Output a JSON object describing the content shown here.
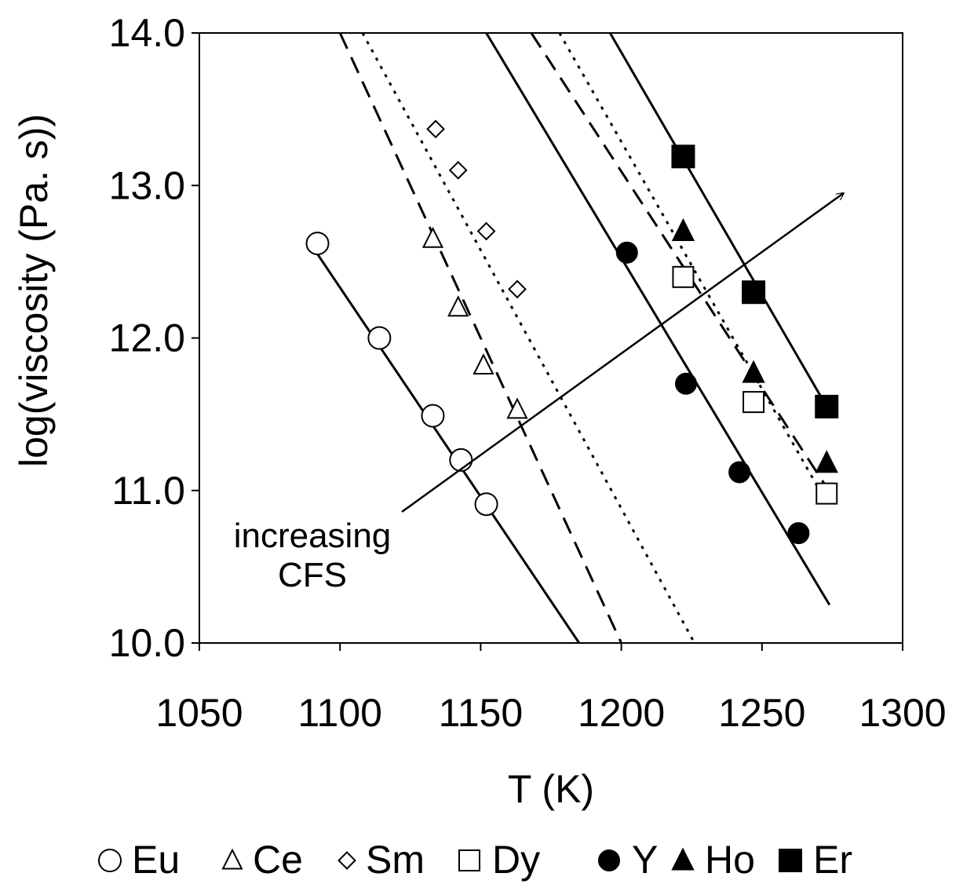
{
  "chart_data": {
    "type": "scatter",
    "xlabel": "T (K)",
    "ylabel": "log(viscosity (Pa. s))",
    "xlim": [
      1050,
      1300
    ],
    "ylim": [
      10.0,
      14.0
    ],
    "x_ticks": [
      "1050",
      "1100",
      "1150",
      "1200",
      "1250",
      "1300"
    ],
    "y_ticks": [
      "10.0",
      "11.0",
      "12.0",
      "13.0",
      "14.0"
    ],
    "grid": false,
    "legend_position": "bottom",
    "series": [
      {
        "name": "Eu",
        "marker": "open-circle",
        "line_style": "solid",
        "points": [
          [
            1092,
            12.62
          ],
          [
            1114,
            12.0
          ],
          [
            1133,
            11.49
          ],
          [
            1143,
            11.2
          ],
          [
            1152,
            10.91
          ]
        ],
        "fit": [
          [
            1092,
            12.55
          ],
          [
            1185,
            10.0
          ]
        ]
      },
      {
        "name": "Ce",
        "marker": "open-triangle",
        "line_style": "dashed",
        "points": [
          [
            1133,
            12.65
          ],
          [
            1142,
            12.2
          ],
          [
            1151,
            11.82
          ],
          [
            1163,
            11.53
          ]
        ],
        "fit": [
          [
            1100,
            14.0
          ],
          [
            1200,
            10.0
          ]
        ]
      },
      {
        "name": "Sm",
        "marker": "open-diamond",
        "line_style": "dotted",
        "points": [
          [
            1134,
            13.37
          ],
          [
            1142,
            13.1
          ],
          [
            1152,
            12.7
          ],
          [
            1163,
            12.32
          ]
        ],
        "fit": [
          [
            1108,
            14.0
          ],
          [
            1226,
            10.0
          ]
        ]
      },
      {
        "name": "Dy",
        "marker": "open-square",
        "line_style": "dashed",
        "points": [
          [
            1222,
            12.4
          ],
          [
            1247,
            11.58
          ],
          [
            1273,
            10.98
          ]
        ],
        "fit": [
          [
            1168,
            14.0
          ],
          [
            1273,
            11.02
          ]
        ]
      },
      {
        "name": "Y",
        "marker": "filled-circle",
        "line_style": "solid",
        "points": [
          [
            1202,
            12.56
          ],
          [
            1223,
            11.7
          ],
          [
            1242,
            11.12
          ],
          [
            1263,
            10.72
          ]
        ],
        "fit": [
          [
            1152,
            14.0
          ],
          [
            1274,
            10.25
          ]
        ]
      },
      {
        "name": "Ho",
        "marker": "filled-triangle",
        "line_style": "dotted",
        "points": [
          [
            1222,
            12.7
          ],
          [
            1247,
            11.77
          ],
          [
            1273,
            11.18
          ]
        ],
        "fit": [
          [
            1178,
            14.0
          ],
          [
            1273,
            10.92
          ]
        ]
      },
      {
        "name": "Er",
        "marker": "filled-square",
        "line_style": "solid",
        "points": [
          [
            1222,
            13.19
          ],
          [
            1247,
            12.3
          ],
          [
            1273,
            11.55
          ]
        ],
        "fit": [
          [
            1196,
            14.0
          ],
          [
            1273,
            11.55
          ]
        ]
      }
    ],
    "annotations": [
      {
        "text_lines": [
          "increasing",
          "CFS"
        ],
        "arrow_from": [
          1122,
          10.86
        ],
        "arrow_to": [
          1279,
          12.95
        ]
      }
    ]
  }
}
